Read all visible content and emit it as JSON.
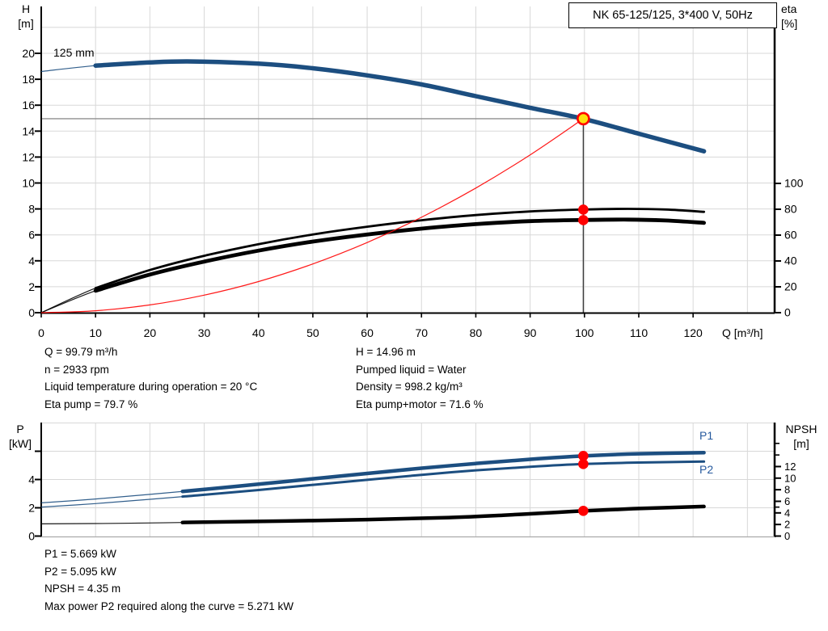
{
  "header": {
    "title": "NK 65-125/125, 3*400 V, 50Hz"
  },
  "labels": {
    "h_axis": [
      "H",
      "[m]"
    ],
    "eta_axis": [
      "eta",
      "[%]"
    ],
    "p_axis": [
      "P",
      "[kW]"
    ],
    "npsh_axis": [
      "NPSH",
      "[m]"
    ],
    "q_axis": "Q [m³/h]",
    "impeller": "125 mm",
    "p1": "P1",
    "p2": "P2"
  },
  "colors": {
    "curve_blue": "#1c4e80",
    "label_blue": "#275a9e",
    "red": "#ff0000",
    "marker_yellow": "#ffdf0e",
    "grid": "#d8d8d8",
    "axis": "#000000",
    "guide_h": "#8f8f8f",
    "guide_v": "#3c3c3c",
    "bottom_border": "#aaaaaa",
    "black": "#000000"
  },
  "info": {
    "duty_left": [
      "Q = 99.79 m³/h",
      "n = 2933 rpm",
      "Liquid temperature during operation = 20 °C",
      "Eta pump = 79.7 %"
    ],
    "duty_right": [
      "H = 14.96 m",
      "Pumped liquid = Water",
      "Density = 998.2 kg/m³",
      "Eta pump+motor = 71.6 %"
    ],
    "power": [
      "P1 = 5.669 kW",
      "P2 = 5.095 kW",
      "NPSH = 4.35 m",
      "Max power P2 required along the curve = 5.271 kW"
    ]
  },
  "chart_data": [
    {
      "id": "qh-eta",
      "type": "line",
      "title": "NK 65-125/125, 3*400 V, 50Hz",
      "x": {
        "label": "Q [m³/h]",
        "min": 0,
        "max": 135,
        "ticks": [
          0,
          10,
          20,
          30,
          40,
          50,
          60,
          70,
          80,
          90,
          100,
          110,
          120
        ],
        "grid": [
          10,
          20,
          30,
          40,
          50,
          60,
          70,
          80,
          90,
          100,
          110,
          120,
          130
        ]
      },
      "y_left": {
        "label": "H [m]",
        "min": 0,
        "max": 23.6,
        "ticks": [
          0,
          2,
          4,
          6,
          8,
          10,
          12,
          14,
          16,
          18,
          20
        ],
        "grid": [
          2,
          4,
          6,
          8,
          10,
          12,
          14,
          16,
          18,
          20,
          22
        ]
      },
      "y_right": {
        "label": "eta [%]",
        "min": 0,
        "max": 118,
        "ticks": [
          0,
          20,
          40,
          60,
          80,
          100
        ],
        "minor_ticks": []
      },
      "series": [
        {
          "name": "head-curve-125mm",
          "label": "125 mm",
          "axis": "left",
          "color": "curve_blue",
          "width": 5.5,
          "thin_until": 10,
          "points": [
            [
              0,
              18.6
            ],
            [
              10,
              19.05
            ],
            [
              20,
              19.3
            ],
            [
              28,
              19.37
            ],
            [
              40,
              19.2
            ],
            [
              50,
              18.85
            ],
            [
              60,
              18.3
            ],
            [
              70,
              17.6
            ],
            [
              80,
              16.7
            ],
            [
              90,
              15.8
            ],
            [
              100,
              14.93
            ],
            [
              110,
              13.8
            ],
            [
              122,
              12.45
            ]
          ]
        },
        {
          "name": "eta-pump-curve",
          "axis": "right",
          "color": "black",
          "width": 2.8,
          "thin_until": 10,
          "points": [
            [
              0,
              0
            ],
            [
              10,
              19
            ],
            [
              20,
              33
            ],
            [
              30,
              44
            ],
            [
              40,
              53
            ],
            [
              50,
              60.5
            ],
            [
              60,
              66.5
            ],
            [
              70,
              71.5
            ],
            [
              80,
              75.5
            ],
            [
              90,
              78.3
            ],
            [
              100,
              79.8
            ],
            [
              108,
              80.3
            ],
            [
              115,
              79.8
            ],
            [
              122,
              78
            ]
          ]
        },
        {
          "name": "eta-pump-motor-curve",
          "axis": "right",
          "color": "black",
          "width": 4.8,
          "thin_until": 10,
          "points": [
            [
              0,
              0
            ],
            [
              10,
              17
            ],
            [
              20,
              29.5
            ],
            [
              30,
              39.5
            ],
            [
              40,
              48
            ],
            [
              50,
              55
            ],
            [
              60,
              60.5
            ],
            [
              70,
              65
            ],
            [
              80,
              68.5
            ],
            [
              90,
              70.8
            ],
            [
              100,
              71.7
            ],
            [
              108,
              72
            ],
            [
              115,
              71.3
            ],
            [
              122,
              69.5
            ]
          ]
        },
        {
          "name": "system-curve",
          "axis": "left",
          "color": "red",
          "width": 1.2,
          "thin_until": null,
          "points": [
            [
              0,
              0
            ],
            [
              10,
              0.15
            ],
            [
              20,
              0.6
            ],
            [
              30,
              1.35
            ],
            [
              40,
              2.4
            ],
            [
              50,
              3.76
            ],
            [
              60,
              5.41
            ],
            [
              70,
              7.36
            ],
            [
              80,
              9.61
            ],
            [
              90,
              12.17
            ],
            [
              99.79,
              14.96
            ]
          ]
        }
      ],
      "duty_point": {
        "q": 99.79,
        "h": 14.96
      },
      "markers": [
        {
          "name": "eta-pump-dot",
          "axis": "right",
          "q": 99.79,
          "value": 79.7
        },
        {
          "name": "eta-pump-motor-dot",
          "axis": "right",
          "q": 99.79,
          "value": 71.6
        }
      ]
    },
    {
      "id": "power-npsh",
      "type": "line",
      "x": {
        "min": 0,
        "max": 135,
        "ticks": [],
        "grid": [
          10,
          20,
          30,
          40,
          50,
          60,
          70,
          80,
          90,
          100,
          110,
          120,
          130
        ]
      },
      "y_left": {
        "label": "P [kW]",
        "min": 0,
        "max": 8,
        "ticks": [
          0,
          2,
          4
        ],
        "tick_marks": [
          0,
          2,
          4,
          6
        ],
        "grid": [
          2,
          4,
          6,
          8
        ]
      },
      "y_right": {
        "label": "NPSH [m]",
        "min": 0,
        "max": 19.6,
        "ticks": [
          0,
          2,
          4,
          6,
          8,
          10,
          12
        ],
        "minor_ticks": [
          5,
          14,
          16
        ]
      },
      "series": [
        {
          "name": "p1-curve",
          "label": "P1",
          "axis": "left",
          "color": "curve_blue",
          "width": 4.5,
          "thin_until": 26,
          "points": [
            [
              0,
              2.35
            ],
            [
              10,
              2.62
            ],
            [
              20,
              2.95
            ],
            [
              30,
              3.3
            ],
            [
              40,
              3.67
            ],
            [
              50,
              4.05
            ],
            [
              60,
              4.43
            ],
            [
              70,
              4.8
            ],
            [
              80,
              5.13
            ],
            [
              90,
              5.43
            ],
            [
              100,
              5.67
            ],
            [
              110,
              5.82
            ],
            [
              122,
              5.9
            ]
          ]
        },
        {
          "name": "p2-curve",
          "label": "P2",
          "axis": "left",
          "color": "curve_blue",
          "width": 3,
          "thin_until": 26,
          "points": [
            [
              0,
              2.05
            ],
            [
              10,
              2.3
            ],
            [
              20,
              2.6
            ],
            [
              30,
              2.92
            ],
            [
              40,
              3.26
            ],
            [
              50,
              3.62
            ],
            [
              60,
              3.98
            ],
            [
              70,
              4.33
            ],
            [
              80,
              4.65
            ],
            [
              90,
              4.9
            ],
            [
              100,
              5.1
            ],
            [
              110,
              5.2
            ],
            [
              122,
              5.27
            ]
          ]
        },
        {
          "name": "npsh-curve",
          "axis": "right",
          "color": "black",
          "width": 4.5,
          "thin_until": 26,
          "points": [
            [
              0,
              2.1
            ],
            [
              15,
              2.2
            ],
            [
              30,
              2.4
            ],
            [
              45,
              2.6
            ],
            [
              60,
              2.85
            ],
            [
              75,
              3.2
            ],
            [
              85,
              3.6
            ],
            [
              95,
              4.1
            ],
            [
              100,
              4.35
            ],
            [
              110,
              4.75
            ],
            [
              122,
              5.1
            ]
          ]
        }
      ],
      "markers": [
        {
          "name": "p1-dot",
          "axis": "left",
          "q": 99.79,
          "value": 5.669
        },
        {
          "name": "p2-dot",
          "axis": "left",
          "q": 99.79,
          "value": 5.095
        },
        {
          "name": "npsh-dot",
          "axis": "right",
          "q": 99.79,
          "value": 4.35
        }
      ]
    }
  ]
}
